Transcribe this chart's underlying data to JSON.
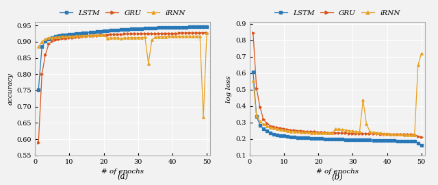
{
  "xlabel": "# of epochs",
  "ylabel_left": "accuracy",
  "ylabel_right": "log loss",
  "label_a": "(a)",
  "label_b": "(b)",
  "legend_labels": [
    "LSTM",
    "GRU",
    "iRNN"
  ],
  "colors": [
    "#2878b8",
    "#d95319",
    "#e8a020"
  ],
  "markers": [
    "s",
    ">",
    "^"
  ],
  "markersize": 2.5,
  "markevery": 1,
  "linewidth": 0.9,
  "xlim_left": [
    0,
    51
  ],
  "xlim_right": [
    0,
    51
  ],
  "ylim_left": [
    0.55,
    0.96
  ],
  "ylim_right": [
    0.1,
    0.91
  ],
  "yticks_left": [
    0.55,
    0.6,
    0.65,
    0.7,
    0.75,
    0.8,
    0.85,
    0.9,
    0.95
  ],
  "yticks_right": [
    0.1,
    0.2,
    0.3,
    0.4,
    0.5,
    0.6,
    0.7,
    0.8,
    0.9
  ],
  "xticks": [
    0,
    10,
    20,
    30,
    40,
    50
  ],
  "acc_lstm": [
    0.752,
    0.884,
    0.901,
    0.908,
    0.913,
    0.916,
    0.918,
    0.92,
    0.921,
    0.922,
    0.923,
    0.925,
    0.926,
    0.927,
    0.928,
    0.929,
    0.93,
    0.931,
    0.932,
    0.933,
    0.934,
    0.935,
    0.935,
    0.936,
    0.937,
    0.937,
    0.938,
    0.939,
    0.939,
    0.94,
    0.94,
    0.941,
    0.941,
    0.942,
    0.942,
    0.943,
    0.943,
    0.943,
    0.944,
    0.944,
    0.944,
    0.945,
    0.945,
    0.945,
    0.946,
    0.946,
    0.946,
    0.947,
    0.947,
    0.947
  ],
  "acc_gru": [
    0.59,
    0.8,
    0.86,
    0.893,
    0.902,
    0.906,
    0.908,
    0.91,
    0.911,
    0.912,
    0.913,
    0.914,
    0.915,
    0.916,
    0.917,
    0.918,
    0.919,
    0.919,
    0.92,
    0.921,
    0.921,
    0.922,
    0.922,
    0.923,
    0.923,
    0.924,
    0.924,
    0.924,
    0.924,
    0.924,
    0.925,
    0.925,
    0.925,
    0.925,
    0.925,
    0.925,
    0.926,
    0.926,
    0.926,
    0.926,
    0.926,
    0.927,
    0.927,
    0.927,
    0.927,
    0.927,
    0.927,
    0.927,
    0.928,
    0.928
  ],
  "acc_irnn": [
    0.884,
    0.9,
    0.909,
    0.912,
    0.913,
    0.914,
    0.915,
    0.916,
    0.916,
    0.917,
    0.917,
    0.918,
    0.918,
    0.919,
    0.919,
    0.919,
    0.92,
    0.92,
    0.92,
    0.921,
    0.911,
    0.912,
    0.912,
    0.912,
    0.91,
    0.912,
    0.912,
    0.913,
    0.913,
    0.913,
    0.913,
    0.914,
    0.833,
    0.905,
    0.914,
    0.915,
    0.915,
    0.915,
    0.916,
    0.916,
    0.916,
    0.916,
    0.917,
    0.917,
    0.917,
    0.917,
    0.917,
    0.917,
    0.668,
    0.928
  ],
  "loss_lstm": [
    0.608,
    0.337,
    0.284,
    0.262,
    0.248,
    0.237,
    0.229,
    0.225,
    0.222,
    0.219,
    0.216,
    0.213,
    0.21,
    0.209,
    0.208,
    0.207,
    0.206,
    0.204,
    0.203,
    0.203,
    0.202,
    0.201,
    0.2,
    0.2,
    0.199,
    0.198,
    0.198,
    0.197,
    0.196,
    0.196,
    0.195,
    0.195,
    0.194,
    0.194,
    0.193,
    0.192,
    0.191,
    0.191,
    0.19,
    0.19,
    0.189,
    0.189,
    0.188,
    0.188,
    0.187,
    0.186,
    0.186,
    0.185,
    0.175,
    0.16
  ],
  "loss_gru": [
    0.845,
    0.508,
    0.395,
    0.318,
    0.296,
    0.28,
    0.274,
    0.268,
    0.264,
    0.261,
    0.258,
    0.255,
    0.252,
    0.25,
    0.249,
    0.247,
    0.245,
    0.244,
    0.243,
    0.241,
    0.24,
    0.239,
    0.238,
    0.237,
    0.237,
    0.236,
    0.235,
    0.235,
    0.234,
    0.234,
    0.233,
    0.233,
    0.232,
    0.232,
    0.232,
    0.231,
    0.231,
    0.23,
    0.23,
    0.23,
    0.229,
    0.229,
    0.228,
    0.228,
    0.228,
    0.227,
    0.227,
    0.226,
    0.214,
    0.21
  ],
  "loss_irnn": [
    0.555,
    0.34,
    0.306,
    0.289,
    0.278,
    0.272,
    0.265,
    0.26,
    0.256,
    0.252,
    0.249,
    0.247,
    0.245,
    0.243,
    0.241,
    0.24,
    0.239,
    0.238,
    0.237,
    0.236,
    0.237,
    0.237,
    0.237,
    0.237,
    0.26,
    0.26,
    0.258,
    0.255,
    0.25,
    0.248,
    0.245,
    0.243,
    0.437,
    0.29,
    0.245,
    0.24,
    0.238,
    0.236,
    0.234,
    0.232,
    0.23,
    0.229,
    0.228,
    0.227,
    0.226,
    0.225,
    0.224,
    0.223,
    0.648,
    0.72
  ],
  "bg_color": "#f2f2f2",
  "plot_bg": "#f2f2f2",
  "grid_color": "#ffffff",
  "spine_color": "#aaaaaa",
  "font_size_label": 7.5,
  "font_size_tick": 7,
  "font_size_legend": 7.5,
  "font_size_caption": 8.5
}
